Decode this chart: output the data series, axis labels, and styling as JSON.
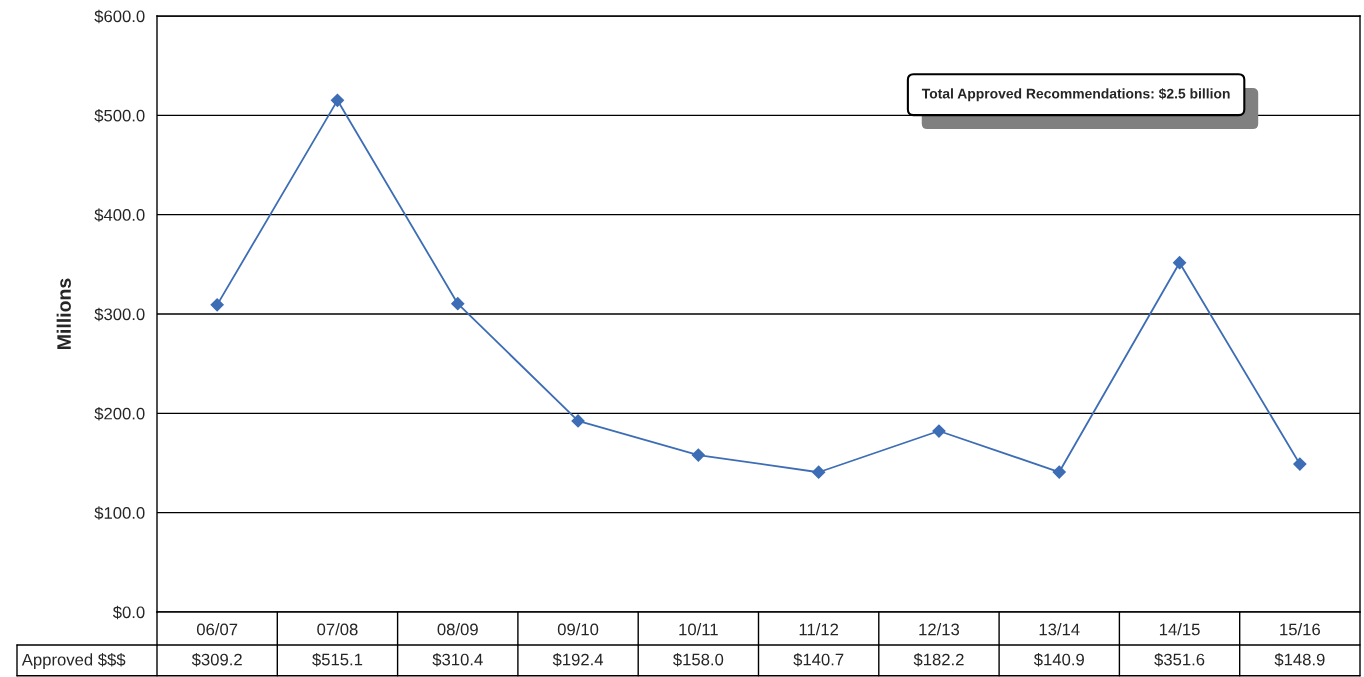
{
  "chart_data": {
    "type": "line",
    "ylabel": "Millions",
    "categories": [
      "06/07",
      "07/08",
      "08/09",
      "09/10",
      "10/11",
      "11/12",
      "12/13",
      "13/14",
      "14/15",
      "15/16"
    ],
    "series": [
      {
        "name": "Approved $$$",
        "color": "#3d6db5",
        "values": [
          309.2,
          515.1,
          310.4,
          192.4,
          158.0,
          140.7,
          182.2,
          140.9,
          351.6,
          148.9
        ],
        "value_labels": [
          "$309.2",
          "$515.1",
          "$310.4",
          "$192.4",
          "$158.0",
          "$140.7",
          "$182.2",
          "$140.9",
          "$351.6",
          "$148.9"
        ]
      }
    ],
    "ylim": [
      0,
      600
    ],
    "yticks": [
      {
        "value": 0,
        "label": "$0.0"
      },
      {
        "value": 100,
        "label": "$100.0"
      },
      {
        "value": 200,
        "label": "$200.0"
      },
      {
        "value": 300,
        "label": "$300.0"
      },
      {
        "value": 400,
        "label": "$400.0"
      },
      {
        "value": 500,
        "label": "$500.0"
      },
      {
        "value": 600,
        "label": "$600.0"
      }
    ],
    "grid": "y",
    "marker": "diamond",
    "line_style": "solid",
    "annotations": [
      "Total Approved Recommendations: $2.5 billion"
    ]
  }
}
